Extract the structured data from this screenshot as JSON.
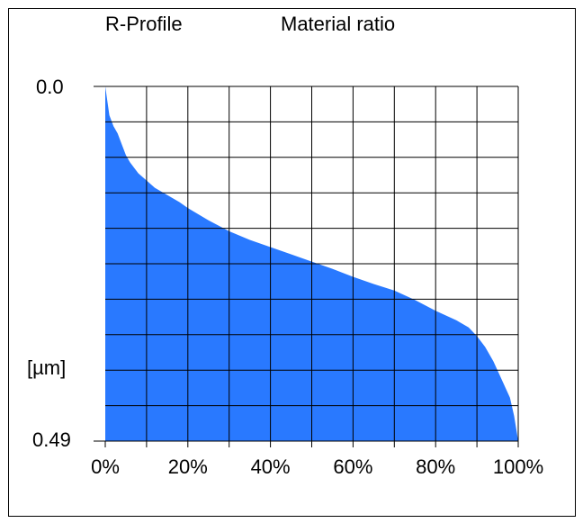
{
  "chart_data": {
    "type": "area",
    "title": "R-Profile",
    "subtitle": "Material ratio",
    "ylabel": "[µm]",
    "y_tick_labels": [
      "0.0",
      "0.49"
    ],
    "x_tick_labels": [
      "0%",
      "20%",
      "40%",
      "60%",
      "80%",
      "100%"
    ],
    "xlim": [
      0,
      100
    ],
    "ylim": [
      0,
      0.49
    ],
    "y_inverted": true,
    "grid": true,
    "fill_color": "#2979ff",
    "x": [
      0,
      0.5,
      1,
      2,
      3,
      4,
      5,
      6,
      8,
      10,
      12,
      15,
      18,
      20,
      25,
      30,
      35,
      40,
      45,
      50,
      55,
      60,
      65,
      70,
      75,
      80,
      85,
      88,
      90,
      92,
      94,
      96,
      98,
      99,
      100
    ],
    "y": [
      0.0,
      0.02,
      0.04,
      0.055,
      0.065,
      0.08,
      0.095,
      0.105,
      0.12,
      0.13,
      0.14,
      0.15,
      0.16,
      0.168,
      0.185,
      0.2,
      0.212,
      0.222,
      0.232,
      0.242,
      0.252,
      0.263,
      0.273,
      0.282,
      0.295,
      0.31,
      0.323,
      0.333,
      0.345,
      0.36,
      0.38,
      0.405,
      0.43,
      0.455,
      0.49
    ]
  }
}
